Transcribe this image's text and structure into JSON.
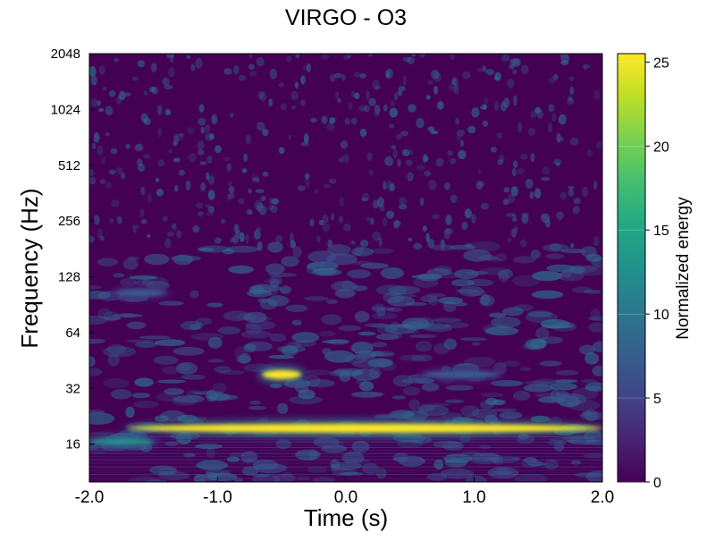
{
  "chart_data": {
    "type": "heatmap",
    "title": "VIRGO - O3",
    "xlabel": "Time (s)",
    "ylabel": "Frequency (Hz)",
    "xlim": [
      -2.0,
      2.0
    ],
    "ylim": [
      10,
      2048
    ],
    "yscale": "log2",
    "xticks": [
      -2.0,
      -1.0,
      0.0,
      1.0,
      2.0
    ],
    "xtick_labels": [
      "-2.0",
      "-1.0",
      "0.0",
      "1.0",
      "2.0"
    ],
    "yticks": [
      16,
      32,
      64,
      128,
      256,
      512,
      1024,
      2048
    ],
    "ytick_labels": [
      "16",
      "32",
      "64",
      "128",
      "256",
      "512",
      "1024",
      "2048"
    ],
    "colorbar": {
      "label": "Normalized energy",
      "range": [
        0,
        25.5
      ],
      "colormap": "viridis",
      "ticks": [
        0,
        5,
        10,
        15,
        20,
        25
      ],
      "tick_labels": [
        "0",
        "5",
        "10",
        "15",
        "20",
        "25"
      ]
    },
    "features": [
      {
        "t_start": -1.7,
        "t_end": 2.0,
        "freq_hz": 19.5,
        "peak_energy": 25
      },
      {
        "t_start": -0.65,
        "t_end": -0.35,
        "freq_hz": 38,
        "peak_energy": 25
      },
      {
        "t_start": -2.0,
        "t_end": -1.5,
        "freq_hz": 16.5,
        "peak_energy": 12
      },
      {
        "t_start": 0.6,
        "t_end": 1.2,
        "freq_hz": 38,
        "peak_energy": 8
      },
      {
        "t_start": -1.8,
        "t_end": -1.4,
        "freq_hz": 105,
        "peak_energy": 7
      }
    ]
  }
}
